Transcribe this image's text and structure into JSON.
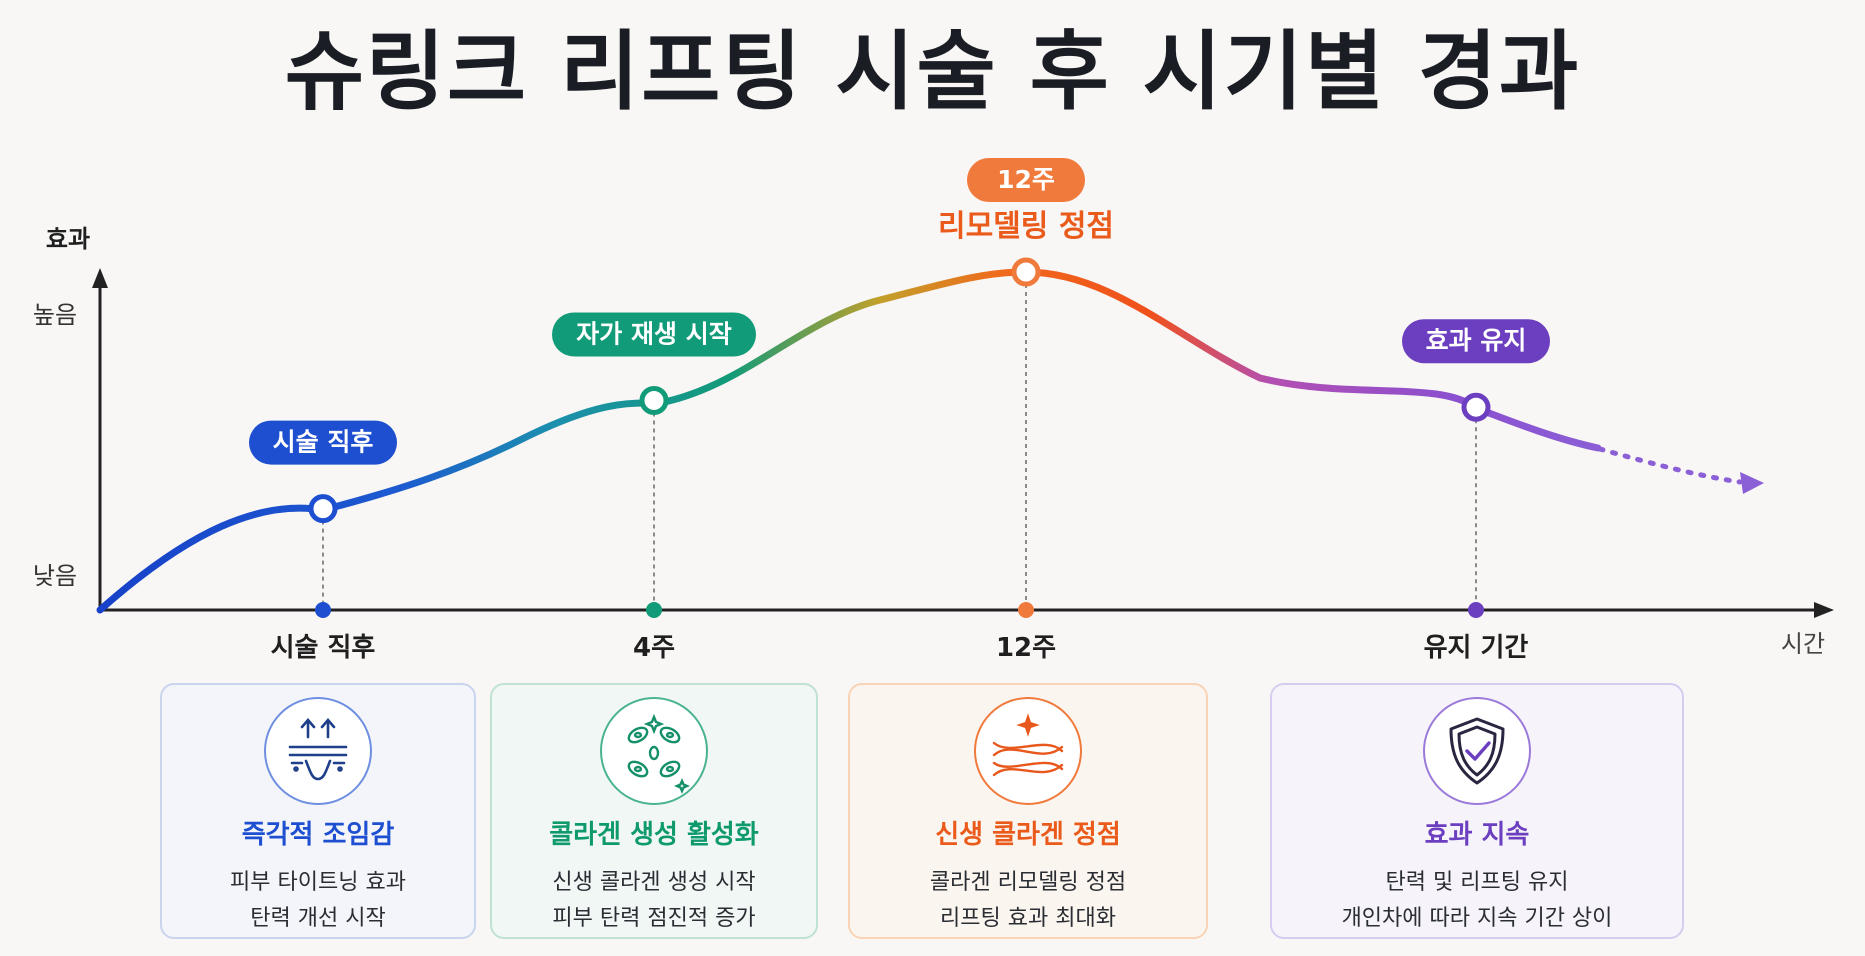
{
  "title": "슈링크 리프팅 시술 후 시기별 경과",
  "chart_data": {
    "type": "line",
    "ylabel": "효과",
    "xlabel": "시간",
    "y_ticks": [
      "높음",
      "낮음"
    ],
    "categories": [
      "시술 직후",
      "4주",
      "12주",
      "유지 기간"
    ],
    "stages": [
      {
        "x_label": "시술 직후",
        "pill": "시술 직후",
        "pill_sub": "",
        "color": "#1d4fd0"
      },
      {
        "x_label": "4주",
        "pill": "자가 재생 시작",
        "pill_sub": "",
        "color": "#129b78"
      },
      {
        "x_label": "12주",
        "pill": "12주",
        "pill_sub": "리모델링 정점",
        "color": "#f07a3c",
        "sub_color": "#ea5a1a"
      },
      {
        "x_label": "유지 기간",
        "pill": "효과 유지",
        "pill_sub": "",
        "color": "#6b3fbf"
      }
    ],
    "values": [
      0.3,
      0.62,
      1.0,
      0.6
    ],
    "grid": false
  },
  "cards": [
    {
      "icon": "skin-lift-icon",
      "title": "즉각적 조임감",
      "lines": [
        "피부 타이트닝 효과",
        "탄력 개선 시작"
      ]
    },
    {
      "icon": "collagen-cells-icon",
      "title": "콜라겐 생성 활성화",
      "lines": [
        "신생 콜라겐 생성 시작",
        "피부 탄력 점진적 증가"
      ]
    },
    {
      "icon": "collagen-fiber-icon",
      "title": "신생 콜라겐 정점",
      "lines": [
        "콜라겐 리모델링 정점",
        "리프팅 효과 최대화"
      ]
    },
    {
      "icon": "shield-check-icon",
      "title": "효과 지속",
      "lines": [
        "탄력 및 리프팅 유지",
        "개인차에 따라 지속 기간 상이"
      ]
    }
  ]
}
